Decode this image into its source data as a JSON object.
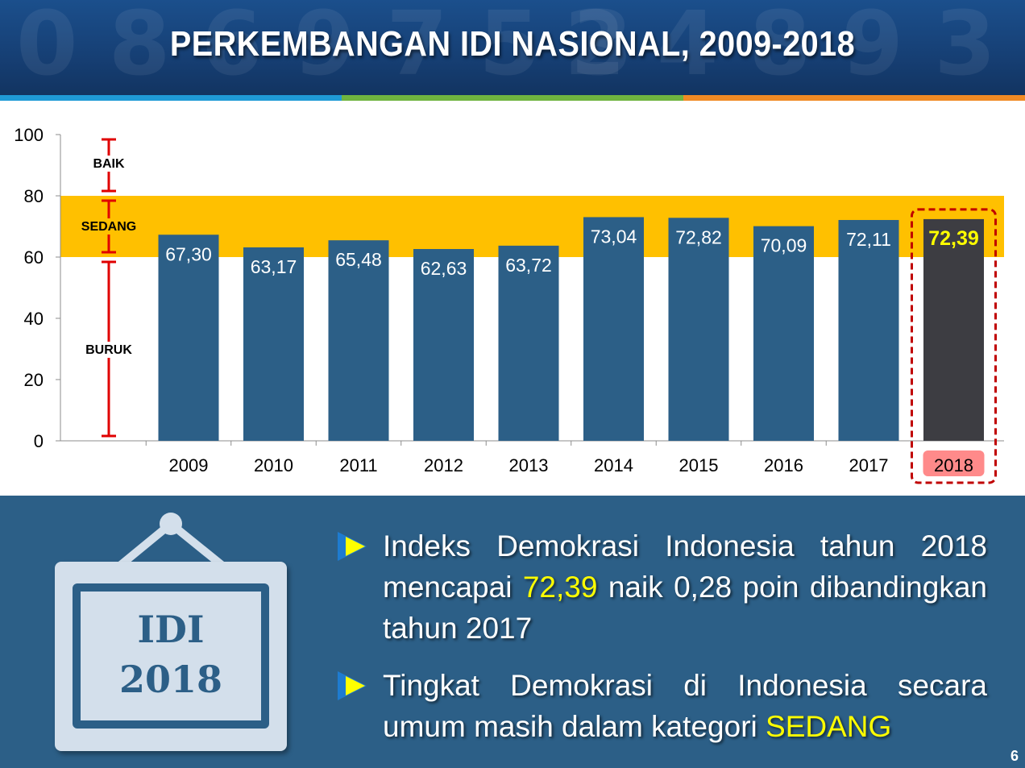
{
  "header": {
    "title": "PERKEMBANGAN IDI NASIONAL, 2009-2018"
  },
  "chart_data": {
    "type": "bar",
    "categories": [
      "2009",
      "2010",
      "2011",
      "2012",
      "2013",
      "2014",
      "2015",
      "2016",
      "2017",
      "2018"
    ],
    "values": [
      67.3,
      63.17,
      65.48,
      62.63,
      63.72,
      73.04,
      72.82,
      70.09,
      72.11,
      72.39
    ],
    "value_labels": [
      "67,30",
      "63,17",
      "65,48",
      "62,63",
      "63,72",
      "73,04",
      "72,82",
      "70,09",
      "72,11",
      "72,39"
    ],
    "ylim": [
      0,
      100
    ],
    "yticks": [
      "0",
      "20",
      "40",
      "60",
      "80",
      "100"
    ],
    "highlight_category": "2018",
    "bands": [
      {
        "label": "BAIK",
        "from": 80,
        "to": 100
      },
      {
        "label": "SEDANG",
        "from": 60,
        "to": 80
      },
      {
        "label": "BURUK",
        "from": 0,
        "to": 60
      }
    ],
    "colors": {
      "bar": "#2c5f87",
      "highlight_bar": "#3d3d42",
      "highlight_label": "#ffff00",
      "band_sedang": "#ffc000",
      "scale_marker": "#e00000",
      "highlight_box": "#c00000",
      "highlight_tick_bg": "#ff8a8a"
    }
  },
  "frame": {
    "line1": "IDI",
    "line2": "2018"
  },
  "bullets": [
    {
      "pre": "Indeks Demokrasi Indonesia tahun 2018 mencapai ",
      "highlight": "72,39",
      "post": " naik 0,28 poin dibandingkan tahun 2017"
    },
    {
      "pre": "Tingkat Demokrasi di Indonesia secara umum masih dalam kategori ",
      "highlight": "SEDANG",
      "post": ""
    }
  ],
  "page_number": "6"
}
